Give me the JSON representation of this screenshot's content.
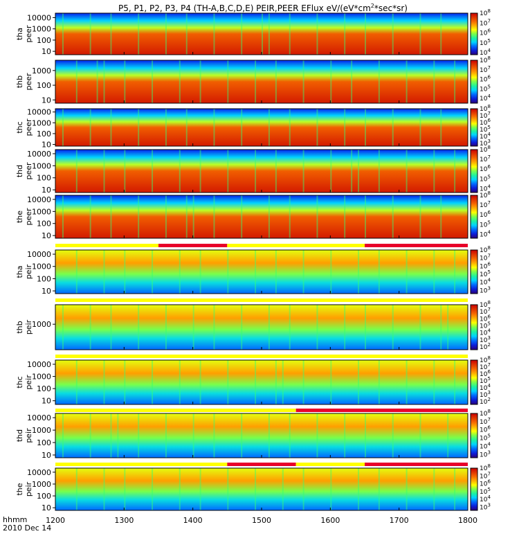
{
  "title": {
    "text": "P5, P1, P2, P3, P4 (TH-A,B,C,D,E) PEIR,PEER EFlux eV/(eV*cm",
    "sup": "2",
    "tail": "*sec*sr)"
  },
  "time_axis": {
    "label": "hhmm",
    "date": "2010 Dec 14",
    "ticks": [
      "1200",
      "1300",
      "1400",
      "1500",
      "1600",
      "1700",
      "1800"
    ]
  },
  "colors": {
    "mode_bar_fast": "#e8002a",
    "mode_bar_slow": "#ffff00",
    "background": "#ffffff"
  },
  "chart_data": [
    {
      "type": "heatmap",
      "name": "tha peer",
      "ylabel": [
        "tha",
        "peer"
      ],
      "yticks": [
        "10000",
        "1000",
        "100",
        "10"
      ],
      "ytick_values": [
        10000,
        1000,
        100,
        10
      ],
      "ylim": [
        5,
        25000
      ],
      "cbar_ticks": [
        {
          "b": "10",
          "e": "8"
        },
        {
          "b": "10",
          "e": "7"
        },
        {
          "b": "10",
          "e": "6"
        },
        {
          "b": "10",
          "e": "5"
        },
        {
          "b": "10",
          "e": "4"
        }
      ],
      "cbar_range": [
        3.8,
        8
      ]
    },
    {
      "type": "heatmap",
      "name": "thb peer",
      "ylabel": [
        "thb",
        "peer"
      ],
      "yticks": [
        "1000",
        "100",
        "10"
      ],
      "ytick_values": [
        1000,
        100,
        10
      ],
      "ylim": [
        6,
        5000
      ],
      "cbar_ticks": [
        {
          "b": "10",
          "e": "8"
        },
        {
          "b": "10",
          "e": "7"
        },
        {
          "b": "10",
          "e": "6"
        },
        {
          "b": "10",
          "e": "5"
        },
        {
          "b": "10",
          "e": "4"
        }
      ],
      "cbar_range": [
        3.5,
        8
      ]
    },
    {
      "type": "heatmap",
      "name": "thc peer",
      "ylabel": [
        "thc",
        "peer"
      ],
      "yticks": [
        "10000",
        "1000",
        "100",
        "10"
      ],
      "ytick_values": [
        10000,
        1000,
        100,
        10
      ],
      "ylim": [
        7,
        20000
      ],
      "cbar_ticks": [
        {
          "b": "10",
          "e": "8"
        },
        {
          "b": "10",
          "e": "7"
        },
        {
          "b": "10",
          "e": "6"
        },
        {
          "b": "10",
          "e": "5"
        },
        {
          "b": "10",
          "e": "4"
        },
        {
          "b": "10",
          "e": "3"
        }
      ],
      "cbar_range": [
        2.6,
        8
      ]
    },
    {
      "type": "heatmap",
      "name": "thd peer",
      "ylabel": [
        "thd",
        "peer"
      ],
      "yticks": [
        "10000",
        "1000",
        "100",
        "10"
      ],
      "ytick_values": [
        10000,
        1000,
        100,
        10
      ],
      "ylim": [
        6,
        22000
      ],
      "cbar_ticks": [
        {
          "b": "10",
          "e": "8"
        },
        {
          "b": "10",
          "e": "7"
        },
        {
          "b": "10",
          "e": "6"
        },
        {
          "b": "10",
          "e": "5"
        },
        {
          "b": "10",
          "e": "4"
        }
      ],
      "cbar_range": [
        3.6,
        8
      ]
    },
    {
      "type": "heatmap",
      "name": "the peer",
      "ylabel": [
        "the",
        "peer"
      ],
      "yticks": [
        "10000",
        "1000",
        "100",
        "10"
      ],
      "ytick_values": [
        10000,
        1000,
        100,
        10
      ],
      "ylim": [
        6,
        22000
      ],
      "cbar_ticks": [
        {
          "b": "10",
          "e": "8"
        },
        {
          "b": "10",
          "e": "7"
        },
        {
          "b": "10",
          "e": "6"
        },
        {
          "b": "10",
          "e": "5"
        },
        {
          "b": "10",
          "e": "4"
        }
      ],
      "cbar_range": [
        3.6,
        8
      ]
    },
    {
      "type": "heatmap",
      "name": "tha peir",
      "ylabel": [
        "tha",
        "peir"
      ],
      "yticks": [
        "10000",
        "1000",
        "100",
        "10"
      ],
      "ytick_values": [
        10000,
        1000,
        100,
        10
      ],
      "ylim": [
        6,
        22000
      ],
      "cbar_ticks": [
        {
          "b": "10",
          "e": "8"
        },
        {
          "b": "10",
          "e": "7"
        },
        {
          "b": "10",
          "e": "6"
        },
        {
          "b": "10",
          "e": "5"
        },
        {
          "b": "10",
          "e": "4"
        },
        {
          "b": "10",
          "e": "3"
        }
      ],
      "cbar_range": [
        2.6,
        8
      ]
    },
    {
      "type": "heatmap",
      "name": "thb peir",
      "ylabel": [
        "thb",
        "peir"
      ],
      "yticks": [
        "1000"
      ],
      "ytick_values": [
        1000
      ],
      "ylim": [
        20,
        20000
      ],
      "cbar_ticks": [
        {
          "b": "10",
          "e": "8"
        },
        {
          "b": "10",
          "e": "7"
        },
        {
          "b": "10",
          "e": "6"
        },
        {
          "b": "10",
          "e": "5"
        },
        {
          "b": "10",
          "e": "4"
        },
        {
          "b": "10",
          "e": "3"
        },
        {
          "b": "10",
          "e": "2"
        }
      ],
      "cbar_range": [
        1.6,
        8
      ]
    },
    {
      "type": "heatmap",
      "name": "thc peir",
      "ylabel": [
        "thc",
        "peir"
      ],
      "yticks": [
        "10000",
        "1000",
        "100",
        "10"
      ],
      "ytick_values": [
        10000,
        1000,
        100,
        10
      ],
      "ylim": [
        5,
        22000
      ],
      "cbar_ticks": [
        {
          "b": "10",
          "e": "8"
        },
        {
          "b": "10",
          "e": "7"
        },
        {
          "b": "10",
          "e": "6"
        },
        {
          "b": "10",
          "e": "5"
        },
        {
          "b": "10",
          "e": "4"
        },
        {
          "b": "10",
          "e": "3"
        },
        {
          "b": "10",
          "e": "2"
        }
      ],
      "cbar_range": [
        1.6,
        8
      ]
    },
    {
      "type": "heatmap",
      "name": "thd peir",
      "ylabel": [
        "thd",
        "peir"
      ],
      "yticks": [
        "10000",
        "1000",
        "100",
        "10"
      ],
      "ytick_values": [
        10000,
        1000,
        100,
        10
      ],
      "ylim": [
        6,
        22000
      ],
      "cbar_ticks": [
        {
          "b": "10",
          "e": "8"
        },
        {
          "b": "10",
          "e": "7"
        },
        {
          "b": "10",
          "e": "6"
        },
        {
          "b": "10",
          "e": "5"
        },
        {
          "b": "10",
          "e": "4"
        },
        {
          "b": "10",
          "e": "3"
        }
      ],
      "cbar_range": [
        2.6,
        8
      ]
    },
    {
      "type": "heatmap",
      "name": "the peir",
      "ylabel": [
        "the",
        "peir"
      ],
      "yticks": [
        "10000",
        "1000",
        "100",
        "10"
      ],
      "ytick_values": [
        10000,
        1000,
        100,
        10
      ],
      "ylim": [
        6,
        22000
      ],
      "cbar_ticks": [
        {
          "b": "10",
          "e": "8"
        },
        {
          "b": "10",
          "e": "7"
        },
        {
          "b": "10",
          "e": "6"
        },
        {
          "b": "10",
          "e": "5"
        },
        {
          "b": "10",
          "e": "4"
        },
        {
          "b": "10",
          "e": "3"
        }
      ],
      "cbar_range": [
        2.6,
        8
      ]
    }
  ],
  "mode_bars": [
    {
      "above": "tha peir",
      "segments": [
        {
          "start": 1200,
          "end": 1350,
          "mode": "slow"
        },
        {
          "start": 1350,
          "end": 1450,
          "mode": "fast"
        },
        {
          "start": 1450,
          "end": 1650,
          "mode": "slow"
        },
        {
          "start": 1650,
          "end": 1800,
          "mode": "fast"
        }
      ]
    },
    {
      "above": "thb peir",
      "segments": [
        {
          "start": 1200,
          "end": 1800,
          "mode": "slow"
        }
      ]
    },
    {
      "above": "thc peir",
      "segments": [
        {
          "start": 1200,
          "end": 1800,
          "mode": "slow"
        }
      ]
    },
    {
      "above": "thd peir",
      "segments": [
        {
          "start": 1200,
          "end": 1550,
          "mode": "slow"
        },
        {
          "start": 1550,
          "end": 1800,
          "mode": "fast"
        }
      ]
    },
    {
      "above": "the peir",
      "segments": [
        {
          "start": 1200,
          "end": 1450,
          "mode": "slow"
        },
        {
          "start": 1450,
          "end": 1550,
          "mode": "fast"
        },
        {
          "start": 1550,
          "end": 1650,
          "mode": "slow"
        },
        {
          "start": 1650,
          "end": 1800,
          "mode": "fast"
        }
      ]
    }
  ]
}
